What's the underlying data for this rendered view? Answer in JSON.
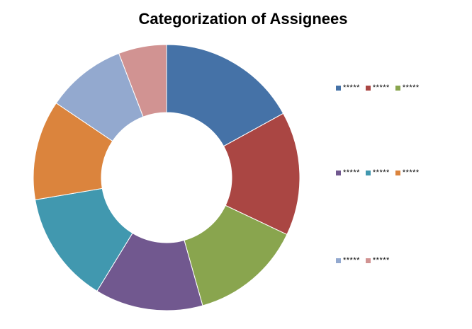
{
  "chart_data": {
    "type": "pie",
    "variant": "donut",
    "title": "Categorization of Assignees",
    "legend_position": "right",
    "series": [
      {
        "name": "*****",
        "value": 17.5,
        "color": "#4572A7"
      },
      {
        "name": "*****",
        "value": 15.5,
        "color": "#AA4643"
      },
      {
        "name": "*****",
        "value": 14.0,
        "color": "#89A54E"
      },
      {
        "name": "*****",
        "value": 13.5,
        "color": "#71588F"
      },
      {
        "name": "*****",
        "value": 14.0,
        "color": "#4198AF"
      },
      {
        "name": "*****",
        "value": 12.5,
        "color": "#DB843D"
      },
      {
        "name": "*****",
        "value": 10.0,
        "color": "#93A9CF"
      },
      {
        "name": "*****",
        "value": 6.0,
        "color": "#D19392"
      }
    ]
  }
}
